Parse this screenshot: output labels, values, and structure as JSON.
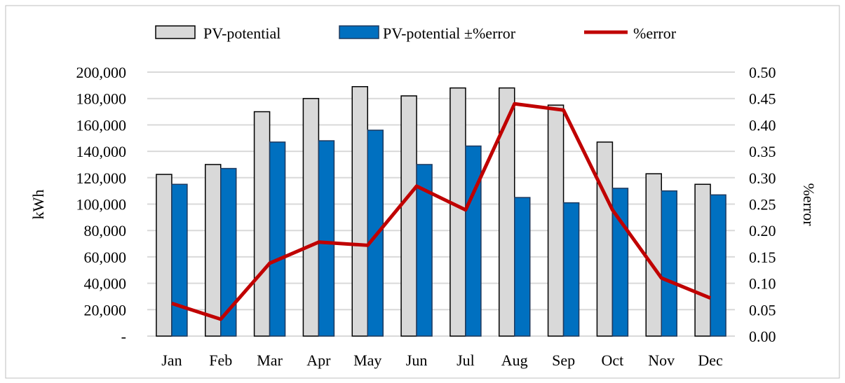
{
  "chart_data": {
    "type": "bar",
    "categories": [
      "Jan",
      "Feb",
      "Mar",
      "Apr",
      "May",
      "Jun",
      "Jul",
      "Aug",
      "Sep",
      "Oct",
      "Nov",
      "Dec"
    ],
    "series": [
      {
        "name": "PV-potential",
        "type": "bar",
        "axis": "left",
        "color": "#d9d9d9",
        "values": [
          122500,
          130000,
          170000,
          180000,
          189000,
          182000,
          188000,
          188000,
          175000,
          147000,
          123000,
          115000
        ]
      },
      {
        "name": "PV-potential ±%error",
        "type": "bar",
        "axis": "left",
        "color": "#0070c0",
        "values": [
          115000,
          127000,
          147000,
          148000,
          156000,
          130000,
          144000,
          105000,
          101000,
          112000,
          110000,
          107000
        ]
      },
      {
        "name": "%error",
        "type": "line",
        "axis": "right",
        "color": "#c00000",
        "values": [
          0.062,
          0.032,
          0.138,
          0.178,
          0.172,
          0.284,
          0.239,
          0.44,
          0.428,
          0.239,
          0.11,
          0.072
        ]
      }
    ],
    "ylabel": "kWh",
    "y2label": "%error",
    "ylim": [
      0,
      200000
    ],
    "y2lim": [
      0,
      0.5
    ],
    "yticks": [
      "-",
      "20,000",
      "40,000",
      "60,000",
      "80,000",
      "100,000",
      "120,000",
      "140,000",
      "160,000",
      "180,000",
      "200,000"
    ],
    "y2ticks": [
      "0.00",
      "0.05",
      "0.10",
      "0.15",
      "0.20",
      "0.25",
      "0.30",
      "0.35",
      "0.40",
      "0.45",
      "0.50"
    ],
    "grid": true,
    "legend": "top"
  }
}
